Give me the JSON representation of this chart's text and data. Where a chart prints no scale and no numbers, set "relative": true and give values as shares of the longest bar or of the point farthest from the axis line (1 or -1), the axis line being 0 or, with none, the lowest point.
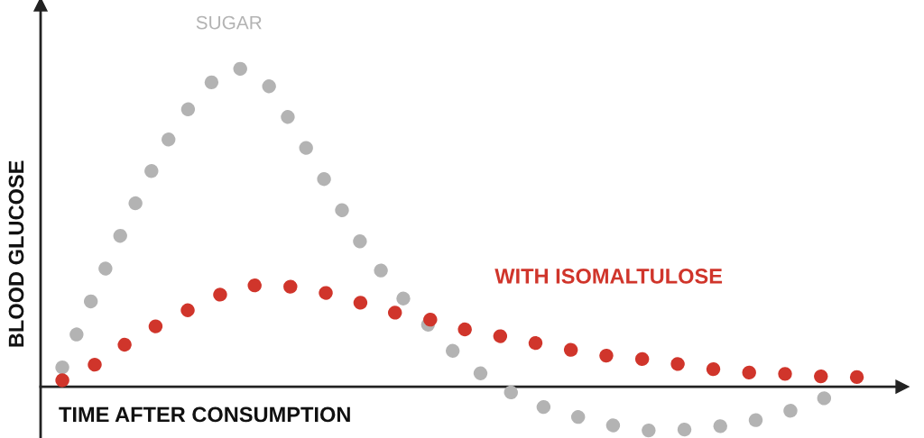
{
  "chart_data": {
    "type": "line",
    "relative": true,
    "line_style": "dotted",
    "xlabel": "TIME AFTER CONSUMPTION",
    "ylabel": "BLOOD GLUCOSE",
    "categories": [
      null,
      null,
      null,
      null,
      null,
      null,
      null,
      null,
      null,
      null,
      null,
      null,
      null,
      null,
      null,
      null,
      null,
      null,
      null,
      null,
      null,
      null,
      null,
      null,
      null
    ],
    "series": [
      {
        "name": "SUGAR",
        "color": "#b3b3b3",
        "values": [
          0.06,
          0.3,
          0.53,
          0.74,
          0.9,
          1.0,
          0.97,
          0.8,
          0.62,
          0.44,
          0.3,
          0.19,
          0.08,
          0.01,
          -0.05,
          -0.08,
          -0.11,
          -0.13,
          -0.14,
          -0.13,
          -0.12,
          -0.1,
          -0.07,
          -0.03,
          null
        ]
      },
      {
        "name": "WITH ISOMALTULOSE",
        "color": "#d0352b",
        "values": [
          0.02,
          0.07,
          0.14,
          0.2,
          0.25,
          0.3,
          0.32,
          0.31,
          0.29,
          0.26,
          0.23,
          0.21,
          0.18,
          0.16,
          0.14,
          0.12,
          0.1,
          0.09,
          0.08,
          0.06,
          0.05,
          0.04,
          0.04,
          0.03,
          0.03
        ]
      }
    ]
  }
}
